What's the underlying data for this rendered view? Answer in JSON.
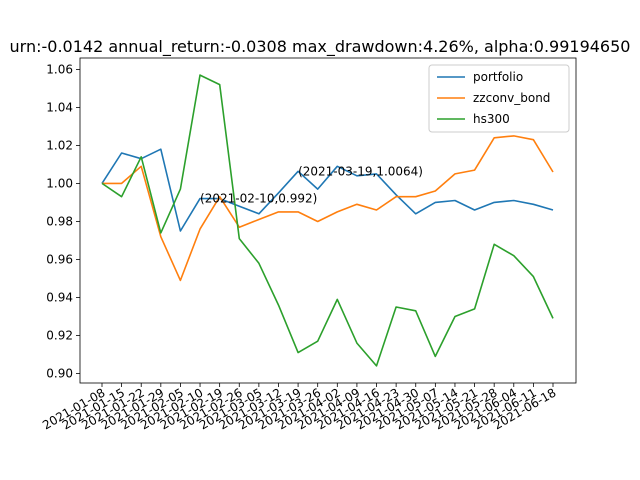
{
  "chart_data": {
    "type": "line",
    "title": "urn:-0.0142  annual_return:-0.0308  max_drawdown:4.26%, alpha:0.99194650",
    "xlabel": "",
    "ylabel": "",
    "ylim": [
      0.895,
      1.066
    ],
    "yticks": [
      0.9,
      0.92,
      0.94,
      0.96,
      0.98,
      1.0,
      1.02,
      1.04,
      1.06
    ],
    "ytick_labels": [
      "0.90",
      "0.92",
      "0.94",
      "0.96",
      "0.98",
      "1.00",
      "1.02",
      "1.04",
      "1.06"
    ],
    "categories": [
      "2021-01-08",
      "2021-01-15",
      "2021-01-22",
      "2021-01-29",
      "2021-02-05",
      "2021-02-10",
      "2021-02-19",
      "2021-02-26",
      "2021-03-05",
      "2021-03-12",
      "2021-03-19",
      "2021-03-26",
      "2021-04-02",
      "2021-04-09",
      "2021-04-16",
      "2021-04-23",
      "2021-04-30",
      "2021-05-07",
      "2021-05-14",
      "2021-05-21",
      "2021-05-28",
      "2021-06-04",
      "2021-06-11",
      "2021-06-18"
    ],
    "grid": false,
    "legend_position": "top-right",
    "series": [
      {
        "name": "portfolio",
        "color": "#1f77b4",
        "values": [
          1.0,
          1.016,
          1.013,
          1.018,
          0.975,
          0.992,
          0.992,
          0.988,
          0.984,
          0.995,
          1.0064,
          0.997,
          1.009,
          1.004,
          1.005,
          0.994,
          0.984,
          0.99,
          0.991,
          0.986,
          0.99,
          0.991,
          0.989,
          0.986
        ]
      },
      {
        "name": "zzconv_bond",
        "color": "#ff7f0e",
        "values": [
          1.0,
          1.0,
          1.009,
          0.972,
          0.949,
          0.976,
          0.993,
          0.977,
          0.981,
          0.985,
          0.985,
          0.98,
          0.985,
          0.989,
          0.986,
          0.993,
          0.993,
          0.996,
          1.005,
          1.007,
          1.024,
          1.025,
          1.023,
          1.006
        ]
      },
      {
        "name": "hs300",
        "color": "#2ca02c",
        "values": [
          1.0,
          0.993,
          1.014,
          0.974,
          0.997,
          1.057,
          1.052,
          0.971,
          0.958,
          0.936,
          0.911,
          0.917,
          0.939,
          0.916,
          0.904,
          0.935,
          0.933,
          0.909,
          0.93,
          0.934,
          0.968,
          0.962,
          0.951,
          0.929
        ]
      }
    ],
    "annotations": [
      {
        "text": "(2021-02-10,0.992)",
        "x": "2021-02-10",
        "y": 0.992
      },
      {
        "text": "(2021-03-19,1.0064)",
        "x": "2021-03-19",
        "y": 1.0064
      }
    ]
  }
}
